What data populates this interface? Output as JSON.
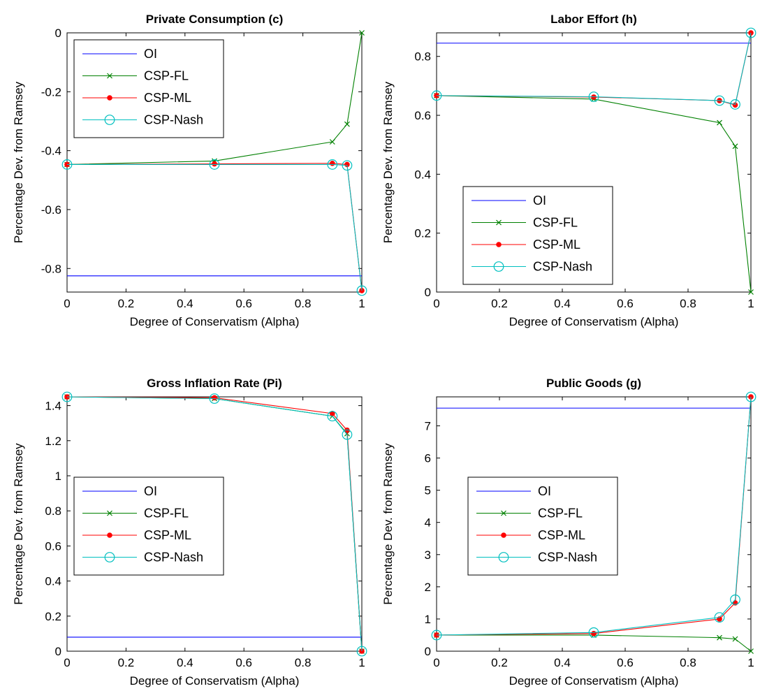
{
  "chart_data": [
    {
      "type": "line",
      "title": "Private Consumption (c)",
      "xlabel": "Degree of Conservatism (Alpha)",
      "ylabel": "Percentage Dev. from Ramsey",
      "xlim": [
        0,
        1
      ],
      "ylim": [
        -0.88,
        0
      ],
      "xticks": [
        "0",
        "0.2",
        "0.4",
        "0.6",
        "0.8",
        "1"
      ],
      "yticks": [
        "-0.8",
        "-0.6",
        "-0.4",
        "-0.2",
        "0"
      ],
      "legend_position": "top-left",
      "x": [
        0,
        0.5,
        0.9,
        0.95,
        1
      ],
      "series": [
        {
          "name": "OI",
          "color": "#0000ff",
          "marker": "none",
          "x": [
            0,
            1
          ],
          "values": [
            -0.825,
            -0.825
          ]
        },
        {
          "name": "CSP-FL",
          "color": "#008000",
          "marker": "x",
          "values": [
            -0.447,
            -0.435,
            -0.37,
            -0.31,
            0.0
          ]
        },
        {
          "name": "CSP-ML",
          "color": "#ff0000",
          "marker": "dot",
          "values": [
            -0.447,
            -0.445,
            -0.443,
            -0.447,
            -0.875
          ]
        },
        {
          "name": "CSP-Nash",
          "color": "#00bfbf",
          "marker": "circle",
          "values": [
            -0.447,
            -0.447,
            -0.447,
            -0.45,
            -0.875
          ]
        }
      ]
    },
    {
      "type": "line",
      "title": "Labor Effort (h)",
      "xlabel": "Degree of Conservatism (Alpha)",
      "ylabel": "Percentage Dev. from Ramsey",
      "xlim": [
        0,
        1
      ],
      "ylim": [
        0,
        0.88
      ],
      "xticks": [
        "0",
        "0.2",
        "0.4",
        "0.6",
        "0.8",
        "1"
      ],
      "yticks": [
        "0",
        "0.2",
        "0.4",
        "0.6",
        "0.8"
      ],
      "legend_position": "bottom-left",
      "x": [
        0,
        0.5,
        0.9,
        0.95,
        1
      ],
      "series": [
        {
          "name": "OI",
          "color": "#0000ff",
          "marker": "none",
          "x": [
            0,
            1
          ],
          "values": [
            0.845,
            0.845
          ]
        },
        {
          "name": "CSP-FL",
          "color": "#008000",
          "marker": "x",
          "values": [
            0.667,
            0.655,
            0.575,
            0.495,
            0.0
          ]
        },
        {
          "name": "CSP-ML",
          "color": "#ff0000",
          "marker": "dot",
          "values": [
            0.667,
            0.662,
            0.65,
            0.635,
            0.88
          ]
        },
        {
          "name": "CSP-Nash",
          "color": "#00bfbf",
          "marker": "circle",
          "values": [
            0.667,
            0.663,
            0.65,
            0.637,
            0.88
          ]
        }
      ]
    },
    {
      "type": "line",
      "title": "Gross Inflation Rate (Pi)",
      "xlabel": "Degree of Conservatism (Alpha)",
      "ylabel": "Percentage Dev. from Ramsey",
      "xlim": [
        0,
        1
      ],
      "ylim": [
        0,
        1.45
      ],
      "xticks": [
        "0",
        "0.2",
        "0.4",
        "0.6",
        "0.8",
        "1"
      ],
      "yticks": [
        "0",
        "0.2",
        "0.4",
        "0.6",
        "0.8",
        "1",
        "1.2",
        "1.4"
      ],
      "legend_position": "center-left",
      "x": [
        0,
        0.5,
        0.9,
        0.95,
        1
      ],
      "series": [
        {
          "name": "OI",
          "color": "#0000ff",
          "marker": "none",
          "x": [
            0,
            1
          ],
          "values": [
            0.08,
            0.08
          ]
        },
        {
          "name": "CSP-FL",
          "color": "#008000",
          "marker": "x",
          "values": [
            1.45,
            1.44,
            1.34,
            1.24,
            0.0
          ]
        },
        {
          "name": "CSP-ML",
          "color": "#ff0000",
          "marker": "dot",
          "values": [
            1.45,
            1.445,
            1.355,
            1.26,
            0.0
          ]
        },
        {
          "name": "CSP-Nash",
          "color": "#00bfbf",
          "marker": "circle",
          "values": [
            1.45,
            1.44,
            1.34,
            1.235,
            0.0
          ]
        }
      ]
    },
    {
      "type": "line",
      "title": "Public Goods (g)",
      "xlabel": "Degree of Conservatism (Alpha)",
      "ylabel": "Percentage Dev. from Ramsey",
      "xlim": [
        0,
        1
      ],
      "ylim": [
        0,
        7.9
      ],
      "xticks": [
        "0",
        "0.2",
        "0.4",
        "0.6",
        "0.8",
        "1"
      ],
      "yticks": [
        "0",
        "1",
        "2",
        "3",
        "4",
        "5",
        "6",
        "7"
      ],
      "legend_position": "center-left",
      "x": [
        0,
        0.5,
        0.9,
        0.95,
        1
      ],
      "series": [
        {
          "name": "OI",
          "color": "#0000ff",
          "marker": "none",
          "x": [
            0,
            1
          ],
          "values": [
            7.55,
            7.55
          ]
        },
        {
          "name": "CSP-FL",
          "color": "#008000",
          "marker": "x",
          "values": [
            0.5,
            0.5,
            0.42,
            0.38,
            0.0
          ]
        },
        {
          "name": "CSP-ML",
          "color": "#ff0000",
          "marker": "dot",
          "values": [
            0.5,
            0.55,
            1.0,
            1.5,
            7.9
          ]
        },
        {
          "name": "CSP-Nash",
          "color": "#00bfbf",
          "marker": "circle",
          "values": [
            0.5,
            0.58,
            1.05,
            1.6,
            7.9
          ]
        }
      ]
    }
  ]
}
